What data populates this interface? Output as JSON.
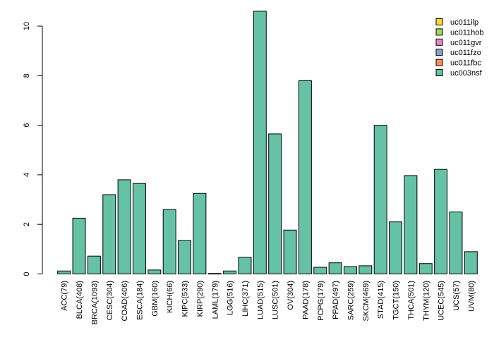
{
  "chart_data": {
    "type": "bar",
    "stacked": true,
    "title": "",
    "xlabel": "",
    "ylabel": "",
    "ylim": [
      0,
      10.8
    ],
    "yticks": [
      0,
      2,
      4,
      6,
      8,
      10
    ],
    "legend_position": "top-right",
    "categories": [
      "ACC(79)",
      "BLCA(408)",
      "BRCA(1093)",
      "CESC(304)",
      "COAD(406)",
      "ESCA(184)",
      "GBM(160)",
      "KICH(66)",
      "KIPC(533)",
      "KIRP(290)",
      "LAML(179)",
      "LGG(516)",
      "LIHC(371)",
      "LUAD(515)",
      "LUSC(501)",
      "OV(304)",
      "PAAD(178)",
      "PCPG(179)",
      "PPAD(497)",
      "SARC(259)",
      "SKCM(469)",
      "STAD(415)",
      "TGCT(150)",
      "THCA(501)",
      "THYM(120)",
      "UCEC(545)",
      "UCS(57)",
      "UVM(80)"
    ],
    "series": [
      {
        "name": "uc003nsf",
        "color": "#66c2a5",
        "values": [
          0.12,
          2.25,
          0.72,
          3.2,
          3.8,
          3.65,
          0.16,
          2.6,
          1.35,
          3.25,
          0.02,
          0.12,
          0.67,
          10.6,
          5.65,
          1.77,
          7.8,
          0.27,
          0.45,
          0.3,
          0.33,
          6.0,
          2.1,
          3.97,
          0.42,
          4.22,
          2.5,
          0.9
        ]
      },
      {
        "name": "uc011fbc",
        "color": "#fc8d62",
        "values": [
          0,
          0,
          0,
          0,
          0,
          0,
          0,
          0,
          0,
          0,
          0,
          0,
          0,
          0,
          0,
          0,
          0,
          0,
          0,
          0,
          0,
          0,
          0,
          0,
          0,
          0,
          0,
          0
        ]
      },
      {
        "name": "uc011fzo",
        "color": "#8da0cb",
        "values": [
          0,
          0,
          0,
          0,
          0,
          0,
          0,
          0,
          0,
          0,
          0,
          0,
          0,
          0,
          0,
          0,
          0,
          0,
          0,
          0,
          0,
          0,
          0,
          0,
          0,
          0,
          0,
          0
        ]
      },
      {
        "name": "uc011gvr",
        "color": "#e78ac3",
        "values": [
          0,
          0,
          0,
          0,
          0,
          0,
          0,
          0,
          0,
          0,
          0,
          0,
          0,
          0,
          0,
          0,
          0,
          0,
          0,
          0,
          0,
          0,
          0,
          0,
          0,
          0,
          0,
          0
        ]
      },
      {
        "name": "uc011hob",
        "color": "#a6d854",
        "values": [
          0,
          0,
          0,
          0,
          0,
          0,
          0,
          0,
          0,
          0,
          0,
          0,
          0,
          0,
          0,
          0,
          0,
          0,
          0,
          0,
          0,
          0,
          0,
          0,
          0,
          0,
          0,
          0
        ]
      },
      {
        "name": "uc011ilp",
        "color": "#ffd92f",
        "values": [
          0,
          0,
          0,
          0,
          0,
          0,
          0,
          0,
          0,
          0,
          0,
          0,
          0,
          0,
          0,
          0,
          0,
          0,
          0,
          0,
          0,
          0,
          0,
          0,
          0,
          0,
          0,
          0
        ]
      }
    ],
    "legend": [
      "uc011ilp",
      "uc011hob",
      "uc011gvr",
      "uc011fzo",
      "uc011fbc",
      "uc003nsf"
    ]
  }
}
